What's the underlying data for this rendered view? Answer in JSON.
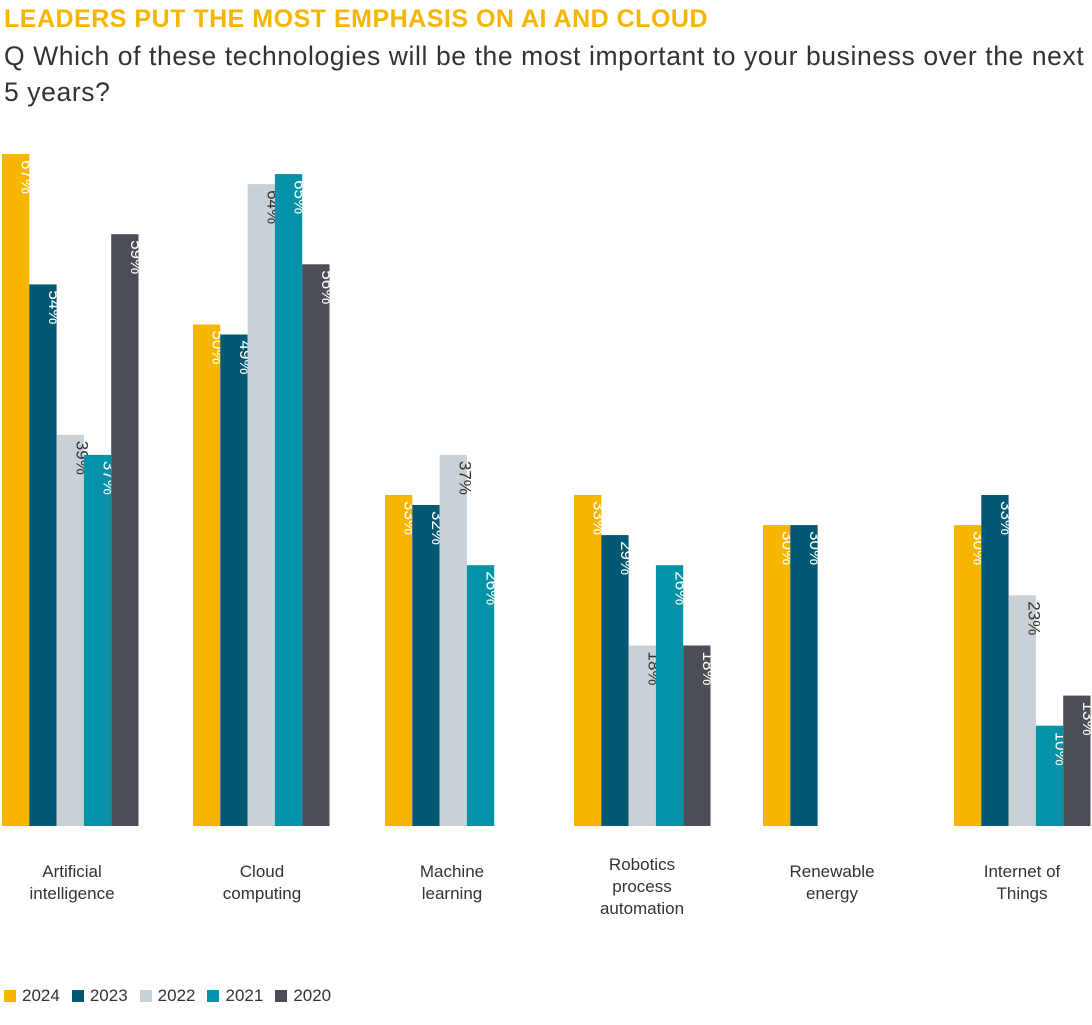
{
  "header": {
    "title": "LEADERS PUT THE MOST EMPHASIS ON AI AND CLOUD",
    "subtitle": "Q Which of these technologies will be the most important to your business over the next 5 years?"
  },
  "colors": {
    "2024": "#f6b600",
    "2023": "#035873",
    "2022": "#c9d1d6",
    "2021": "#0492a8",
    "2020": "#4a4e57",
    "title": "#f6b600"
  },
  "chart_data": {
    "type": "bar",
    "title": "LEADERS PUT THE MOST EMPHASIS ON AI AND CLOUD",
    "subtitle": "Q Which of these technologies will be the most important to your business over the next 5 years?",
    "xlabel": "",
    "ylabel": "",
    "ylim": [
      0,
      70
    ],
    "grid": false,
    "legend_position": "bottom-left",
    "categories": [
      "Artificial intelligence",
      "Cloud computing",
      "Machine learning",
      "Robotics process automation",
      "Renewable energy",
      "Internet of Things"
    ],
    "category_label_lines": [
      [
        "Artificial",
        "intelligence"
      ],
      [
        "Cloud",
        "computing"
      ],
      [
        "Machine",
        "learning"
      ],
      [
        "Robotics",
        "process",
        "automation"
      ],
      [
        "Renewable",
        "energy"
      ],
      [
        "Internet of",
        "Things"
      ]
    ],
    "series": [
      {
        "name": "2024",
        "values": [
          67,
          50,
          33,
          33,
          30,
          30
        ]
      },
      {
        "name": "2023",
        "values": [
          54,
          49,
          32,
          29,
          30,
          33
        ]
      },
      {
        "name": "2022",
        "values": [
          39,
          64,
          37,
          18,
          null,
          23
        ]
      },
      {
        "name": "2021",
        "values": [
          37,
          65,
          26,
          26,
          null,
          10
        ]
      },
      {
        "name": "2020",
        "values": [
          59,
          56,
          null,
          18,
          null,
          13
        ]
      }
    ],
    "value_suffix": "%"
  }
}
